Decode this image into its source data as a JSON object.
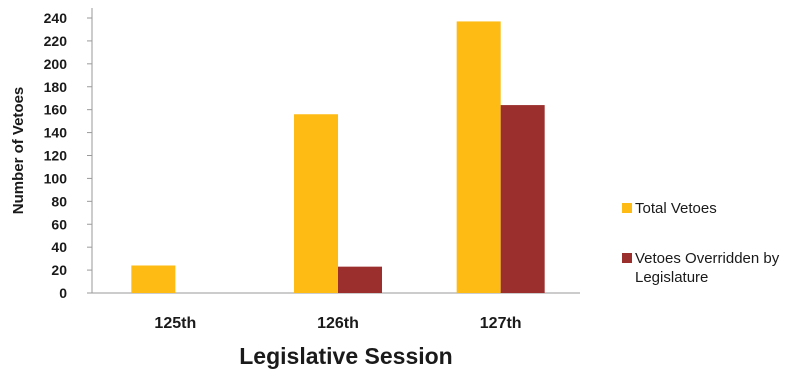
{
  "chart_data": {
    "type": "bar",
    "categories": [
      "125th",
      "126th",
      "127th"
    ],
    "series": [
      {
        "name": "Total Vetoes",
        "values": [
          24,
          156,
          237
        ],
        "color": "#fdbb13"
      },
      {
        "name": "Vetoes Overridden by Legislature",
        "name_lines": [
          "Vetoes Overridden by",
          "Legislature"
        ],
        "values": [
          0,
          23,
          164
        ],
        "color": "#9b2f2d"
      }
    ],
    "xlabel": "Legislative Session",
    "ylabel": "Number of Vetoes",
    "ylim": [
      0,
      240
    ],
    "yticks": [
      0,
      20,
      40,
      60,
      80,
      100,
      120,
      140,
      160,
      180,
      200,
      220,
      240
    ],
    "grid": false,
    "legend_position": "right"
  }
}
